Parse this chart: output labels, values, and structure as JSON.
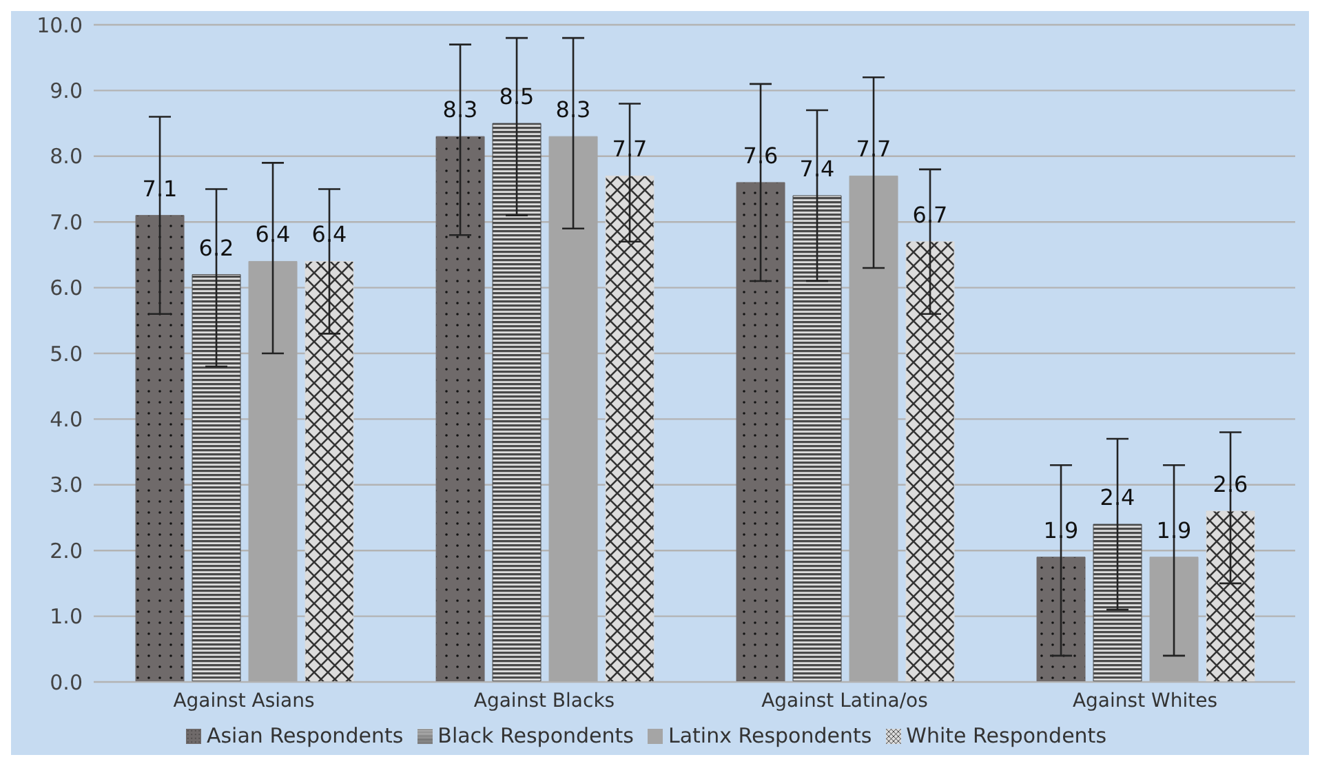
{
  "chart_data": {
    "type": "bar",
    "categories": [
      "Against Asians",
      "Against Blacks",
      "Against Latina/os",
      "Against Whites"
    ],
    "series": [
      {
        "name": "Asian Respondents",
        "color": "#6f6a6a",
        "values": [
          7.1,
          8.3,
          7.6,
          1.9
        ],
        "errors": [
          [
            5.6,
            8.6
          ],
          [
            6.8,
            9.7
          ],
          [
            6.1,
            9.1
          ],
          [
            0.4,
            3.3
          ]
        ]
      },
      {
        "name": "Black Respondents",
        "color": "#4a4a4a",
        "values": [
          6.2,
          8.5,
          7.4,
          2.4
        ],
        "errors": [
          [
            4.8,
            7.5
          ],
          [
            7.1,
            9.8
          ],
          [
            6.1,
            8.7
          ],
          [
            1.1,
            3.7
          ]
        ]
      },
      {
        "name": "Latinx Respondents",
        "color": "#a5a5a5",
        "values": [
          6.4,
          8.3,
          7.7,
          1.9
        ],
        "errors": [
          [
            5.0,
            7.9
          ],
          [
            6.9,
            9.8
          ],
          [
            6.3,
            9.2
          ],
          [
            0.4,
            3.3
          ]
        ]
      },
      {
        "name": "White Respondents",
        "color": "#dcdcdc",
        "values": [
          6.4,
          7.7,
          6.7,
          2.6
        ],
        "errors": [
          [
            5.3,
            7.5
          ],
          [
            6.7,
            8.8
          ],
          [
            5.6,
            7.8
          ],
          [
            1.5,
            3.8
          ]
        ]
      }
    ],
    "ylim": [
      0,
      10
    ],
    "yticks": [
      {
        "value": 0,
        "label": "0.0"
      },
      {
        "value": 1,
        "label": "1.0"
      },
      {
        "value": 2,
        "label": "2.0"
      },
      {
        "value": 3,
        "label": "3.0"
      },
      {
        "value": 4,
        "label": "4.0"
      },
      {
        "value": 5,
        "label": "5.0"
      },
      {
        "value": 6,
        "label": "6.0"
      },
      {
        "value": 7,
        "label": "7.0"
      },
      {
        "value": 8,
        "label": "8.0"
      },
      {
        "value": 9,
        "label": "9.0"
      },
      {
        "value": 10,
        "label": "10.0"
      }
    ],
    "grid": "y",
    "legend": "bottom",
    "data_labels": true
  }
}
